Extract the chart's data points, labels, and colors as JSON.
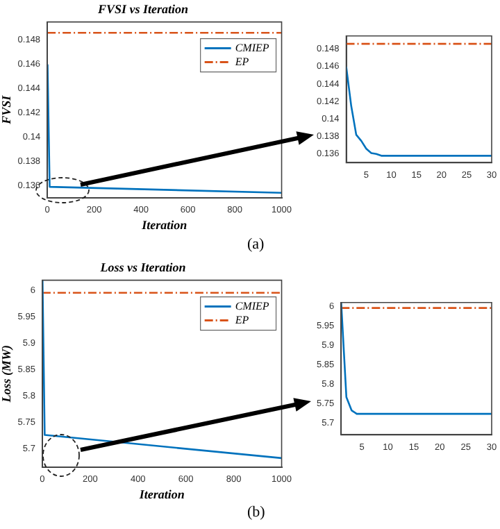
{
  "chart_data": [
    {
      "type": "line",
      "title": "FVSI vs Iteration",
      "xlabel": "Iteration",
      "ylabel": "FVSI",
      "xlim": [
        0,
        1000
      ],
      "xticks": [
        0,
        200,
        400,
        600,
        800,
        1000
      ],
      "ylim": [
        0.135,
        0.1495
      ],
      "yticks": [
        0.136,
        0.138,
        0.14,
        0.142,
        0.144,
        0.146,
        0.148
      ],
      "grid": false,
      "legend": "top right",
      "annotations": [
        "(a)"
      ],
      "series": [
        {
          "name": "CMIEP",
          "color": "#0072bd",
          "line_style": "solid",
          "x": [
            1,
            10,
            1000
          ],
          "values": [
            0.146,
            0.1359,
            0.1354
          ]
        },
        {
          "name": "EP",
          "color": "#d95319",
          "line_style": "dashed",
          "x": [
            0,
            1000
          ],
          "values": [
            0.1486,
            0.1486
          ]
        }
      ]
    },
    {
      "type": "line",
      "xlim": [
        1,
        30
      ],
      "xticks": [
        5,
        10,
        15,
        20,
        25,
        30
      ],
      "ylim": [
        0.135,
        0.1495
      ],
      "yticks": [
        0.136,
        0.138,
        0.14,
        0.142,
        0.144,
        0.146,
        0.148
      ],
      "grid": false,
      "series": [
        {
          "color": "#0072bd",
          "line_style": "solid",
          "x": [
            1,
            2,
            3,
            4,
            5,
            6,
            7,
            8,
            30
          ],
          "values": [
            0.146,
            0.1415,
            0.1382,
            0.1375,
            0.1366,
            0.1361,
            0.136,
            0.1358,
            0.1358
          ]
        },
        {
          "color": "#d95319",
          "line_style": "dashed",
          "x": [
            1,
            30
          ],
          "values": [
            0.1486,
            0.1486
          ]
        }
      ]
    },
    {
      "type": "line",
      "title": "Loss vs Iteration",
      "xlabel": "Iteration",
      "ylabel": "Loss (MW)",
      "xlim": [
        0,
        1000
      ],
      "xticks": [
        0,
        200,
        400,
        600,
        800,
        1000
      ],
      "ylim": [
        5.665,
        6.02
      ],
      "yticks": [
        5.7,
        5.75,
        5.8,
        5.85,
        5.9,
        5.95,
        6
      ],
      "grid": false,
      "legend": "top right",
      "annotations": [
        "(b)"
      ],
      "series": [
        {
          "name": "CMIEP",
          "color": "#0072bd",
          "line_style": "solid",
          "x": [
            1,
            10,
            1000
          ],
          "values": [
            6.02,
            5.726,
            5.682
          ]
        },
        {
          "name": "EP",
          "color": "#d95319",
          "line_style": "dashed",
          "x": [
            0,
            1000
          ],
          "values": [
            5.996,
            5.996
          ]
        }
      ]
    },
    {
      "type": "line",
      "xlim": [
        1,
        30
      ],
      "xticks": [
        5,
        10,
        15,
        20,
        25,
        30
      ],
      "ylim": [
        5.67,
        6.01
      ],
      "yticks": [
        5.7,
        5.75,
        5.8,
        5.85,
        5.9,
        5.95,
        6
      ],
      "grid": false,
      "series": [
        {
          "color": "#0072bd",
          "line_style": "solid",
          "x": [
            1,
            2,
            3,
            4,
            30
          ],
          "values": [
            6.01,
            5.767,
            5.733,
            5.724,
            5.724
          ]
        },
        {
          "color": "#d95319",
          "line_style": "dashed",
          "x": [
            1,
            30
          ],
          "values": [
            5.996,
            5.996
          ]
        }
      ]
    }
  ]
}
